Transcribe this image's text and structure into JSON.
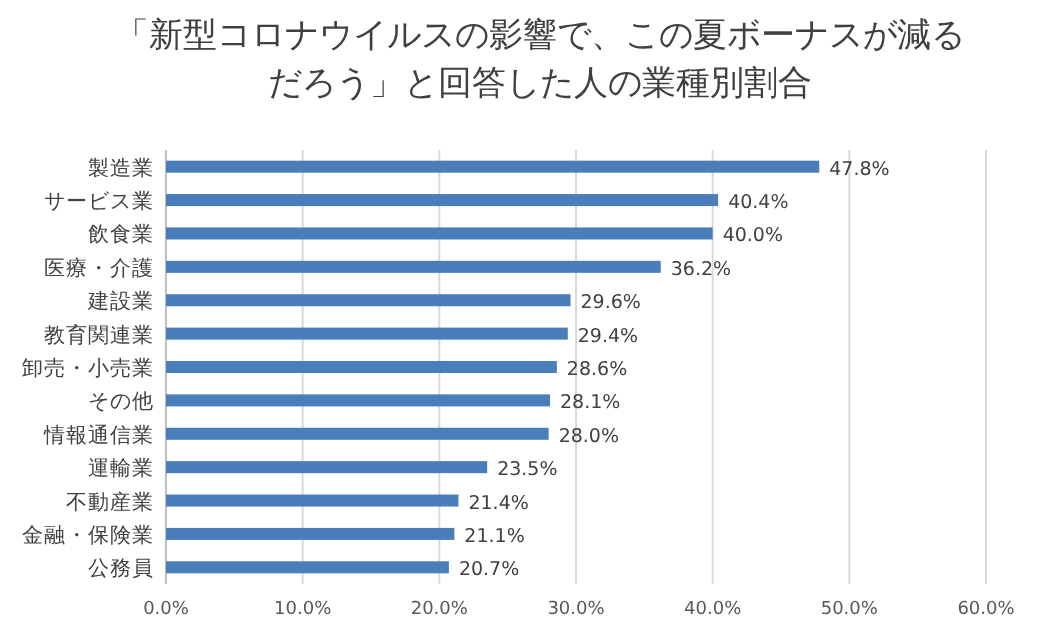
{
  "chart_data": {
    "type": "bar",
    "orientation": "horizontal",
    "title": "「新型コロナウイルスの影響で、この夏ボーナスが減るだろう」と回答した人の業種別割合",
    "categories": [
      "製造業",
      "サービス業",
      "飲食業",
      "医療・介護",
      "建設業",
      "教育関連業",
      "卸売・小売業",
      "その他",
      "情報通信業",
      "運輸業",
      "不動産業",
      "金融・保険業",
      "公務員"
    ],
    "values": [
      47.8,
      40.4,
      40.0,
      36.2,
      29.6,
      29.4,
      28.6,
      28.1,
      28.0,
      23.5,
      21.4,
      21.1,
      20.7
    ],
    "value_labels": [
      "47.8%",
      "40.4%",
      "40.0%",
      "36.2%",
      "29.6%",
      "29.4%",
      "28.6%",
      "28.1%",
      "28.0%",
      "23.5%",
      "21.4%",
      "21.1%",
      "20.7%"
    ],
    "color": "#4a7ebb",
    "xlim": [
      0,
      60
    ],
    "xticks": [
      {
        "value": 0,
        "label": "0.0%"
      },
      {
        "value": 10,
        "label": "10.0%"
      },
      {
        "value": 20,
        "label": "20.0%"
      },
      {
        "value": 30,
        "label": "30.0%"
      },
      {
        "value": 40,
        "label": "40.0%"
      },
      {
        "value": 50,
        "label": "50.0%"
      },
      {
        "value": 60,
        "label": "60.0%"
      }
    ],
    "grid": "x"
  }
}
